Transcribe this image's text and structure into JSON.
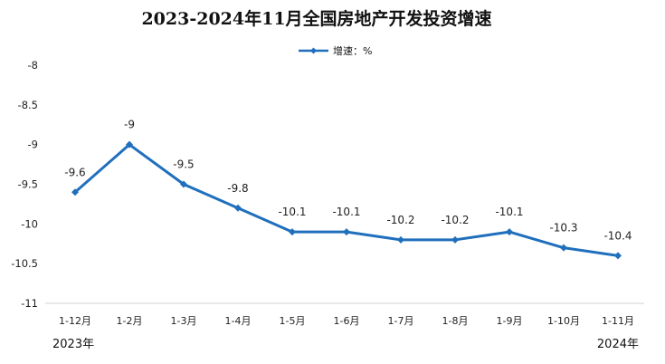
{
  "chart_data": {
    "type": "line",
    "title": "2023-2024年11月全国房地产开发投资增速",
    "categories": [
      "1-12月",
      "1-2月",
      "1-3月",
      "1-4月",
      "1-5月",
      "1-6月",
      "1-7月",
      "1-8月",
      "1-9月",
      "1-10月",
      "1-11月"
    ],
    "series": [
      {
        "name": "增速：%",
        "values": [
          -9.6,
          -9,
          -9.5,
          -9.8,
          -10.1,
          -10.1,
          -10.2,
          -10.2,
          -10.1,
          -10.3,
          -10.4
        ],
        "labels": [
          "-9.6",
          "-9",
          "-9.5",
          "-9.8",
          "-10.1",
          "-10.1",
          "-10.2",
          "-10.2",
          "-10.1",
          "-10.3",
          "-10.4"
        ],
        "color": "#1f6fbd"
      }
    ],
    "yticks": [
      "-8",
      "-8.5",
      "-9",
      "-9.5",
      "-10",
      "-10.5",
      "-11"
    ],
    "ylim": [
      -11,
      -8
    ],
    "y_reversed": true,
    "grid": false,
    "legend_position": "top-center",
    "year_labels": {
      "start": "2023年",
      "end": "2024年"
    }
  }
}
